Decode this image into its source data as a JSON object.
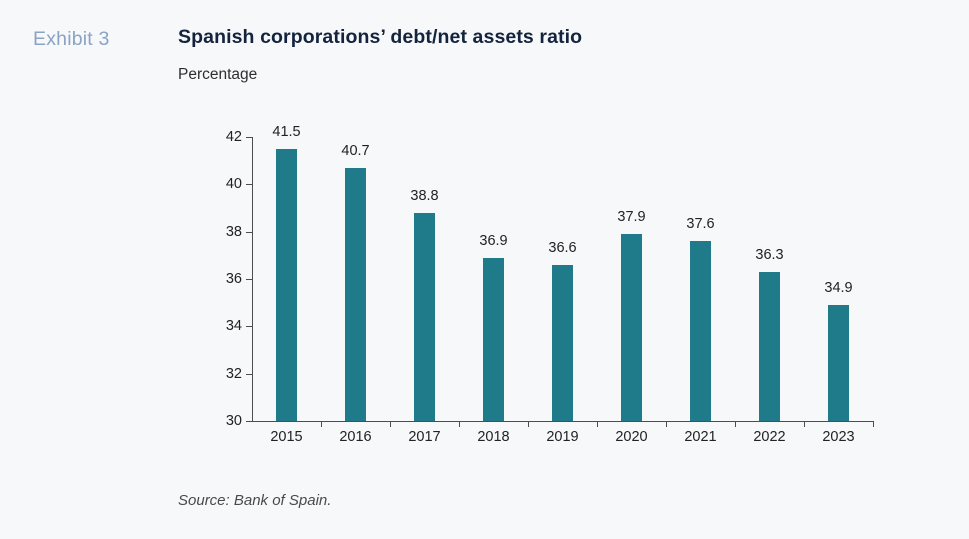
{
  "page": {
    "exhibit_label": "Exhibit 3",
    "title": "Spanish corporations’ debt/net assets ratio",
    "subtitle": "Percentage",
    "source": "Source: Bank of Spain."
  },
  "colors": {
    "background": "#f7f8fa",
    "bar": "#1f7a8a",
    "title": "#14243e",
    "exhibit": "#8ba3c4",
    "axis": "#4d4d4d",
    "text": "#2e2e2e",
    "source": "#4a4a4a"
  },
  "chart_data": {
    "type": "bar",
    "title": "Spanish corporations’ debt/net assets ratio",
    "subtitle": "Percentage",
    "exhibit": "Exhibit 3",
    "categories": [
      "2015",
      "2016",
      "2017",
      "2018",
      "2019",
      "2020",
      "2021",
      "2022",
      "2023"
    ],
    "values": [
      41.5,
      40.7,
      38.8,
      36.9,
      36.6,
      37.9,
      37.6,
      36.3,
      34.9
    ],
    "value_labels": [
      "41.5",
      "40.7",
      "38.8",
      "36.9",
      "36.6",
      "37.9",
      "37.6",
      "36.3",
      "34.9"
    ],
    "ylim": [
      30,
      42
    ],
    "yticks": [
      30,
      32,
      34,
      36,
      38,
      40,
      42
    ],
    "xlabel": "",
    "ylabel": "Percentage",
    "grid": false,
    "legend_position": "none",
    "bar_color": "#1f7a8a",
    "source": "Source: Bank of Spain."
  }
}
